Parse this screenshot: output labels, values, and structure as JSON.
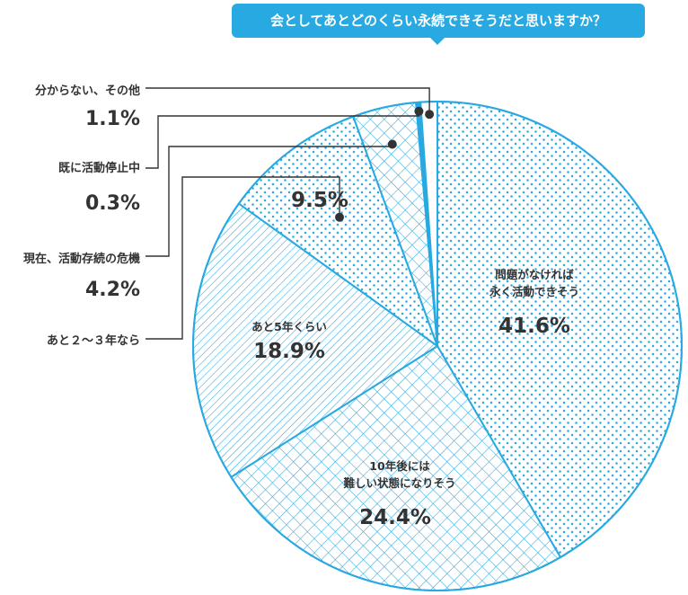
{
  "chart_data": {
    "type": "pie",
    "title": "会としてあとどのくらい永続できそうだと思いますか？",
    "slices": [
      {
        "label": "問題がなければ永く活動できそう",
        "label_lines": [
          "問題がなければ",
          "永く活動できそう"
        ],
        "value": 41.6,
        "value_text": "41.6%",
        "pattern": "dots"
      },
      {
        "label": "10年後には難しい状態になりそう",
        "label_lines": [
          "10年後には",
          "難しい状態になりそう"
        ],
        "value": 24.4,
        "value_text": "24.4%",
        "pattern": "crosshatch"
      },
      {
        "label": "あと5年くらい",
        "label_lines": [
          "あと5年くらい"
        ],
        "value": 18.9,
        "value_text": "18.9%",
        "pattern": "diagonal"
      },
      {
        "label": "あと２〜３年なら",
        "label_lines": [
          "あと２〜３年なら"
        ],
        "value": 9.5,
        "value_text": "9.5%",
        "pattern": "dots"
      },
      {
        "label": "現在、活動存続の危機",
        "label_lines": [
          "現在、活動存続の危機"
        ],
        "value": 4.2,
        "value_text": "4.2%",
        "pattern": "crosshatch"
      },
      {
        "label": "既に活動停止中",
        "label_lines": [
          "既に活動停止中"
        ],
        "value": 0.3,
        "value_text": "0.3%",
        "pattern": "solid"
      },
      {
        "label": "分からない、その他",
        "label_lines": [
          "分からない、その他"
        ],
        "value": 1.1,
        "value_text": "1.1%",
        "pattern": "white"
      }
    ],
    "legend": "callouts"
  },
  "colors": {
    "accent": "#29a9e1",
    "text": "#333333",
    "background": "#ffffff"
  }
}
